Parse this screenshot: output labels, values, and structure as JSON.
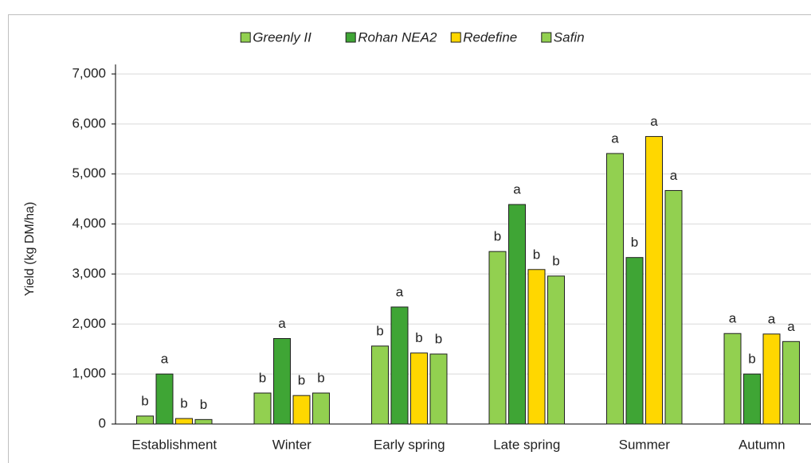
{
  "chart_data": {
    "type": "bar",
    "y_label": "Yield (kg DM/ha)",
    "categories": [
      "Establishment",
      "Winter",
      "Early spring",
      "Late spring",
      "Summer",
      "Autumn"
    ],
    "series": [
      {
        "name": "Greenly II",
        "color": "#92d050",
        "values": [
          160,
          620,
          1560,
          3450,
          5410,
          1810
        ],
        "letters": [
          "b",
          "b",
          "b",
          "b",
          "a",
          "a"
        ]
      },
      {
        "name": "Rohan NEA2",
        "color": "#3fa535",
        "values": [
          1000,
          1710,
          2340,
          4390,
          3330,
          1000
        ],
        "letters": [
          "a",
          "a",
          "a",
          "a",
          "b",
          "b"
        ]
      },
      {
        "name": "Redefine",
        "color": "#ffd700",
        "values": [
          110,
          570,
          1420,
          3090,
          5750,
          1800
        ],
        "letters": [
          "b",
          "b",
          "b",
          "b",
          "a",
          "a"
        ]
      },
      {
        "name": "Safin",
        "color": "#92d050",
        "values": [
          90,
          620,
          1400,
          2960,
          4670,
          1650
        ],
        "letters": [
          "b",
          "b",
          "b",
          "b",
          "a",
          "a"
        ]
      }
    ],
    "ylim": [
      0,
      7000
    ],
    "yticks": [
      0,
      {
        "value": 1000,
        "label": "1,000"
      },
      {
        "value": 2000,
        "label": "2,000"
      },
      {
        "value": 3000,
        "label": "3,000"
      },
      {
        "value": 4000,
        "label": "4,000"
      },
      {
        "value": 5000,
        "label": "5,000"
      },
      {
        "value": 6000,
        "label": "6,000"
      },
      {
        "value": 7000,
        "label": "7,000"
      }
    ],
    "grid": true
  }
}
